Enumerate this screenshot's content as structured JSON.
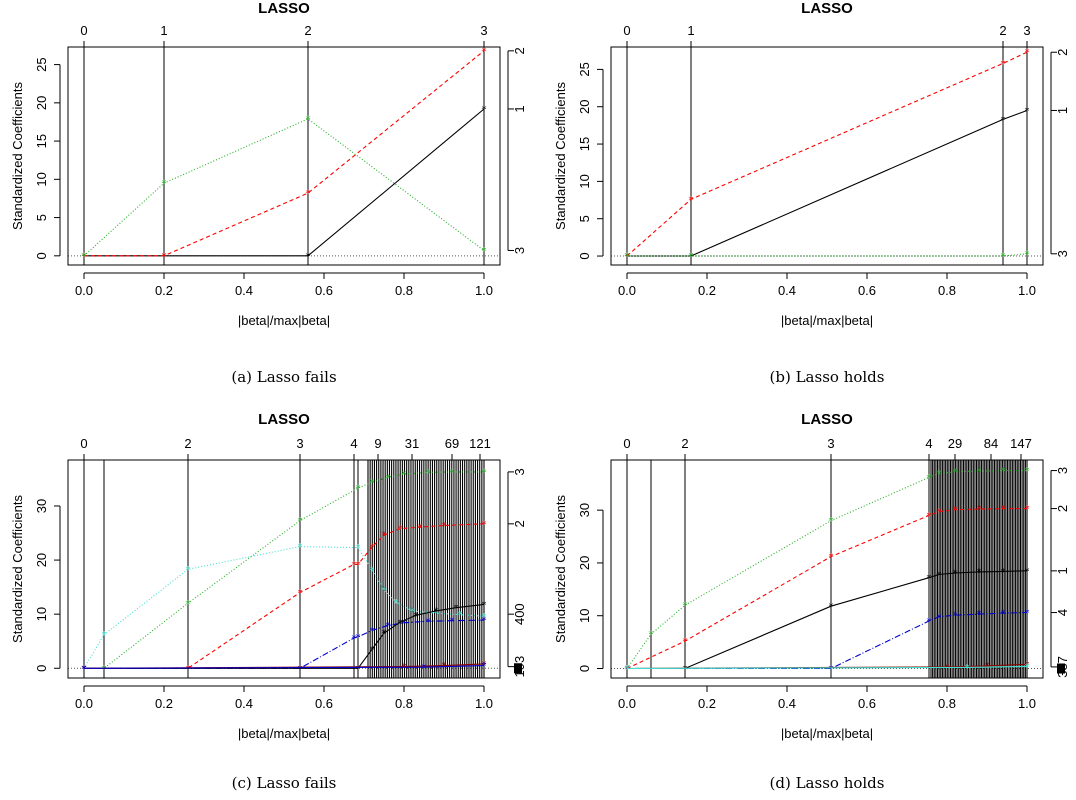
{
  "chart_data": [
    {
      "type": "line",
      "caption": "(a)  Lasso fails",
      "title": "LASSO",
      "xlabel": "|beta|/max|beta|",
      "ylabel": "Standardized Coefficients",
      "xlim": [
        0,
        1
      ],
      "ylim": [
        0,
        26
      ],
      "xticks": [
        0,
        0.2,
        0.4,
        0.6,
        0.8,
        1
      ],
      "yticks": [
        0,
        5,
        10,
        15,
        20,
        25
      ],
      "steps": [
        0,
        0.2,
        0.56,
        1.0
      ],
      "top_labels": [
        {
          "x": 0,
          "label": "0"
        },
        {
          "x": 0.2,
          "label": "1"
        },
        {
          "x": 0.56,
          "label": "2"
        },
        {
          "x": 1.0,
          "label": "3"
        }
      ],
      "right_labels": [
        {
          "y": 26.8,
          "label": "2"
        },
        {
          "y": 19.2,
          "label": "1"
        },
        {
          "y": 0.7,
          "label": "3"
        }
      ],
      "series": [
        {
          "color": "#000000",
          "dash": "",
          "x": [
            0,
            0.2,
            0.56,
            1.0
          ],
          "y": [
            0,
            0,
            0,
            19.2
          ]
        },
        {
          "color": "#ff0000",
          "dash": "4,3",
          "x": [
            0,
            0.2,
            0.56,
            1.0
          ],
          "y": [
            0,
            0,
            8.2,
            26.8
          ]
        },
        {
          "color": "#22b022",
          "dash": "1,2",
          "x": [
            0,
            0.2,
            0.56,
            1.0
          ],
          "y": [
            0,
            9.5,
            17.9,
            0.7
          ]
        }
      ]
    },
    {
      "type": "line",
      "caption": "(b)  Lasso holds",
      "title": "LASSO",
      "xlabel": "|beta|/max|beta|",
      "ylabel": "Standardized Coefficients",
      "xlim": [
        0,
        1
      ],
      "ylim": [
        0,
        26
      ],
      "xticks": [
        0,
        0.2,
        0.4,
        0.6,
        0.8,
        1
      ],
      "yticks": [
        0,
        5,
        10,
        15,
        20,
        25
      ],
      "steps": [
        0,
        0.16,
        0.94,
        1.0
      ],
      "top_labels": [
        {
          "x": 0,
          "label": "0"
        },
        {
          "x": 0.16,
          "label": "1"
        },
        {
          "x": 0.94,
          "label": "2"
        },
        {
          "x": 1.0,
          "label": "3"
        }
      ],
      "right_labels": [
        {
          "y": 27.3,
          "label": "2"
        },
        {
          "y": 19.5,
          "label": "1"
        },
        {
          "y": 0.3,
          "label": "3"
        }
      ],
      "series": [
        {
          "color": "#000000",
          "dash": "",
          "x": [
            0,
            0.16,
            0.94,
            1.0
          ],
          "y": [
            0,
            0,
            18.3,
            19.5
          ]
        },
        {
          "color": "#ff0000",
          "dash": "4,3",
          "x": [
            0,
            0.16,
            0.94,
            1.0
          ],
          "y": [
            0,
            7.6,
            25.8,
            27.3
          ]
        },
        {
          "color": "#22b022",
          "dash": "1,2",
          "x": [
            0,
            0.16,
            0.94,
            1.0
          ],
          "y": [
            0,
            0,
            0,
            0.3
          ]
        }
      ]
    },
    {
      "type": "line",
      "caption": "(c)  Lasso fails",
      "title": "LASSO",
      "xlabel": "|beta|/max|beta|",
      "ylabel": "Standardized Coefficients",
      "xlim": [
        0,
        1
      ],
      "ylim": [
        0,
        37
      ],
      "xticks": [
        0,
        0.2,
        0.4,
        0.6,
        0.8,
        1
      ],
      "yticks": [
        0,
        10,
        20,
        30
      ],
      "steps": [
        0,
        0.05,
        0.26,
        0.54,
        0.675,
        0.685
      ],
      "dense_steps": {
        "from": 0.71,
        "to": 1.0,
        "count": 55
      },
      "top_labels": [
        {
          "x": 0,
          "label": "0"
        },
        {
          "x": 0.26,
          "label": "2"
        },
        {
          "x": 0.54,
          "label": "3"
        },
        {
          "x": 0.675,
          "label": "4"
        },
        {
          "x": 0.735,
          "label": "9"
        },
        {
          "x": 0.82,
          "label": "31"
        },
        {
          "x": 0.92,
          "label": "69"
        },
        {
          "x": 0.99,
          "label": "121"
        }
      ],
      "right_labels": [
        {
          "y": 36.3,
          "label": "3"
        },
        {
          "y": 26.7,
          "label": "2"
        },
        {
          "y": 10,
          "label": "400"
        },
        {
          "y": 0.3,
          "label": "193"
        }
      ],
      "series": [
        {
          "color": "#22b022",
          "dash": "1,2",
          "x": [
            0,
            0.05,
            0.26,
            0.54,
            0.685,
            0.72,
            0.76,
            0.8,
            0.86,
            0.92,
            1.0
          ],
          "y": [
            0,
            0,
            12,
            27.3,
            33.3,
            34.4,
            35.3,
            35.9,
            36.2,
            36.3,
            36.3
          ]
        },
        {
          "color": "#ff0000",
          "dash": "4,3",
          "x": [
            0,
            0.26,
            0.54,
            0.675,
            0.685,
            0.72,
            0.75,
            0.79,
            0.84,
            0.9,
            1.0
          ],
          "y": [
            0,
            0,
            14,
            19.2,
            19.2,
            22.4,
            24.6,
            25.8,
            26.1,
            26.4,
            26.7
          ]
        },
        {
          "color": "#40e0d0",
          "dash": "1,2",
          "x": [
            0,
            0.05,
            0.26,
            0.54,
            0.685,
            0.72,
            0.75,
            0.78,
            0.82,
            0.88,
            0.94,
            1.0
          ],
          "y": [
            0,
            6.2,
            18.3,
            22.5,
            22.3,
            18.2,
            14.5,
            12.2,
            10.6,
            10.2,
            9.9,
            9.6
          ]
        },
        {
          "color": "#0000cc",
          "dash": "6,2,1,2",
          "x": [
            0,
            0.54,
            0.675,
            0.685,
            0.72,
            0.76,
            0.8,
            0.86,
            0.92,
            1.0
          ],
          "y": [
            0,
            0,
            5.6,
            5.8,
            7.0,
            7.9,
            8.4,
            8.7,
            8.8,
            8.9
          ]
        },
        {
          "color": "#000000",
          "dash": "",
          "x": [
            0,
            0.685,
            0.72,
            0.75,
            0.79,
            0.83,
            0.88,
            0.93,
            1.0
          ],
          "y": [
            0,
            0,
            3.5,
            6.5,
            8.5,
            9.8,
            10.6,
            11.2,
            11.8
          ]
        },
        {
          "color": "#8b0000",
          "dash": "",
          "x": [
            0,
            0.8,
            0.9,
            1.0
          ],
          "y": [
            0,
            0.3,
            0.5,
            0.8
          ]
        },
        {
          "color": "#0000cc",
          "dash": "",
          "x": [
            0,
            0.85,
            1.0
          ],
          "y": [
            0,
            0.2,
            0.5
          ]
        }
      ]
    },
    {
      "type": "line",
      "caption": "(d)  Lasso holds",
      "title": "LASSO",
      "xlabel": "|beta|/max|beta|",
      "ylabel": "Standardized Coefficients",
      "xlim": [
        0,
        1
      ],
      "ylim": [
        0,
        37
      ],
      "xticks": [
        0,
        0.2,
        0.4,
        0.6,
        0.8,
        1
      ],
      "yticks": [
        0,
        10,
        20,
        30
      ],
      "steps": [
        0,
        0.06,
        0.145,
        0.51,
        0.755
      ],
      "dense_steps": {
        "from": 0.76,
        "to": 1.0,
        "count": 60
      },
      "top_labels": [
        {
          "x": 0,
          "label": "0"
        },
        {
          "x": 0.145,
          "label": "2"
        },
        {
          "x": 0.51,
          "label": "3"
        },
        {
          "x": 0.755,
          "label": "4"
        },
        {
          "x": 0.82,
          "label": "29"
        },
        {
          "x": 0.91,
          "label": "84"
        },
        {
          "x": 0.985,
          "label": "147"
        }
      ],
      "right_labels": [
        {
          "y": 37.5,
          "label": "3"
        },
        {
          "y": 30.3,
          "label": "2"
        },
        {
          "y": 18.5,
          "label": "1"
        },
        {
          "y": 10.6,
          "label": "4"
        },
        {
          "y": 0.3,
          "label": "387"
        }
      ],
      "series": [
        {
          "color": "#22b022",
          "dash": "1,2",
          "x": [
            0,
            0.06,
            0.145,
            0.51,
            0.755,
            0.78,
            0.82,
            0.88,
            0.94,
            1.0
          ],
          "y": [
            0,
            6.5,
            12,
            28,
            36.2,
            36.9,
            37.3,
            37.4,
            37.5,
            37.5
          ]
        },
        {
          "color": "#ff0000",
          "dash": "4,3",
          "x": [
            0,
            0.145,
            0.51,
            0.755,
            0.78,
            0.82,
            0.88,
            0.94,
            1.0
          ],
          "y": [
            0,
            5.2,
            21.2,
            29,
            29.7,
            30.1,
            30.2,
            30.3,
            30.3
          ]
        },
        {
          "color": "#000000",
          "dash": "",
          "x": [
            0,
            0.145,
            0.51,
            0.755,
            0.78,
            0.82,
            0.88,
            0.94,
            1.0
          ],
          "y": [
            0,
            0,
            11.8,
            17.2,
            17.8,
            18.1,
            18.3,
            18.4,
            18.5
          ]
        },
        {
          "color": "#0000cc",
          "dash": "6,2,1,2",
          "x": [
            0,
            0.51,
            0.755,
            0.78,
            0.82,
            0.88,
            0.94,
            1.0
          ],
          "y": [
            0,
            0,
            9,
            9.8,
            10.1,
            10.3,
            10.5,
            10.6
          ]
        },
        {
          "color": "#8b0000",
          "dash": "",
          "x": [
            0,
            0.8,
            0.9,
            1.0
          ],
          "y": [
            0,
            0.3,
            0.5,
            0.8
          ]
        },
        {
          "color": "#40e0d0",
          "dash": "",
          "x": [
            0,
            0.85,
            1.0
          ],
          "y": [
            0,
            0.2,
            0.4
          ]
        }
      ]
    }
  ]
}
